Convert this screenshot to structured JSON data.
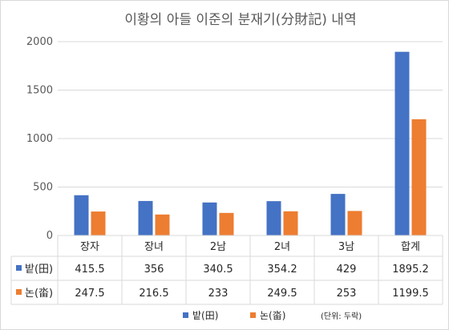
{
  "chart_data": {
    "type": "bar",
    "title": "이황의 아들 이준의 분재기(分財記) 내역",
    "categories": [
      "장자",
      "장녀",
      "2남",
      "2녀",
      "3남",
      "합계"
    ],
    "series": [
      {
        "name": "밭(田)",
        "color": "#4472C4",
        "values": [
          415.5,
          356,
          340.5,
          354.2,
          429,
          1895.2
        ],
        "value_labels": [
          "415.5",
          "356",
          "340.5",
          "354.2",
          "429",
          "1895.2"
        ]
      },
      {
        "name": "논(畓)",
        "color": "#ED7D31",
        "values": [
          247.5,
          216.5,
          233,
          249.5,
          253,
          1199.5
        ],
        "value_labels": [
          "247.5",
          "216.5",
          "233",
          "249.5",
          "253",
          "1199.5"
        ]
      }
    ],
    "ylim": [
      0,
      2000
    ],
    "yticks": [
      0,
      500,
      1000,
      1500,
      2000
    ],
    "gridlines": true,
    "data_table": true,
    "legend_position": "bottom",
    "unit_note": "(단위: 두락)"
  }
}
